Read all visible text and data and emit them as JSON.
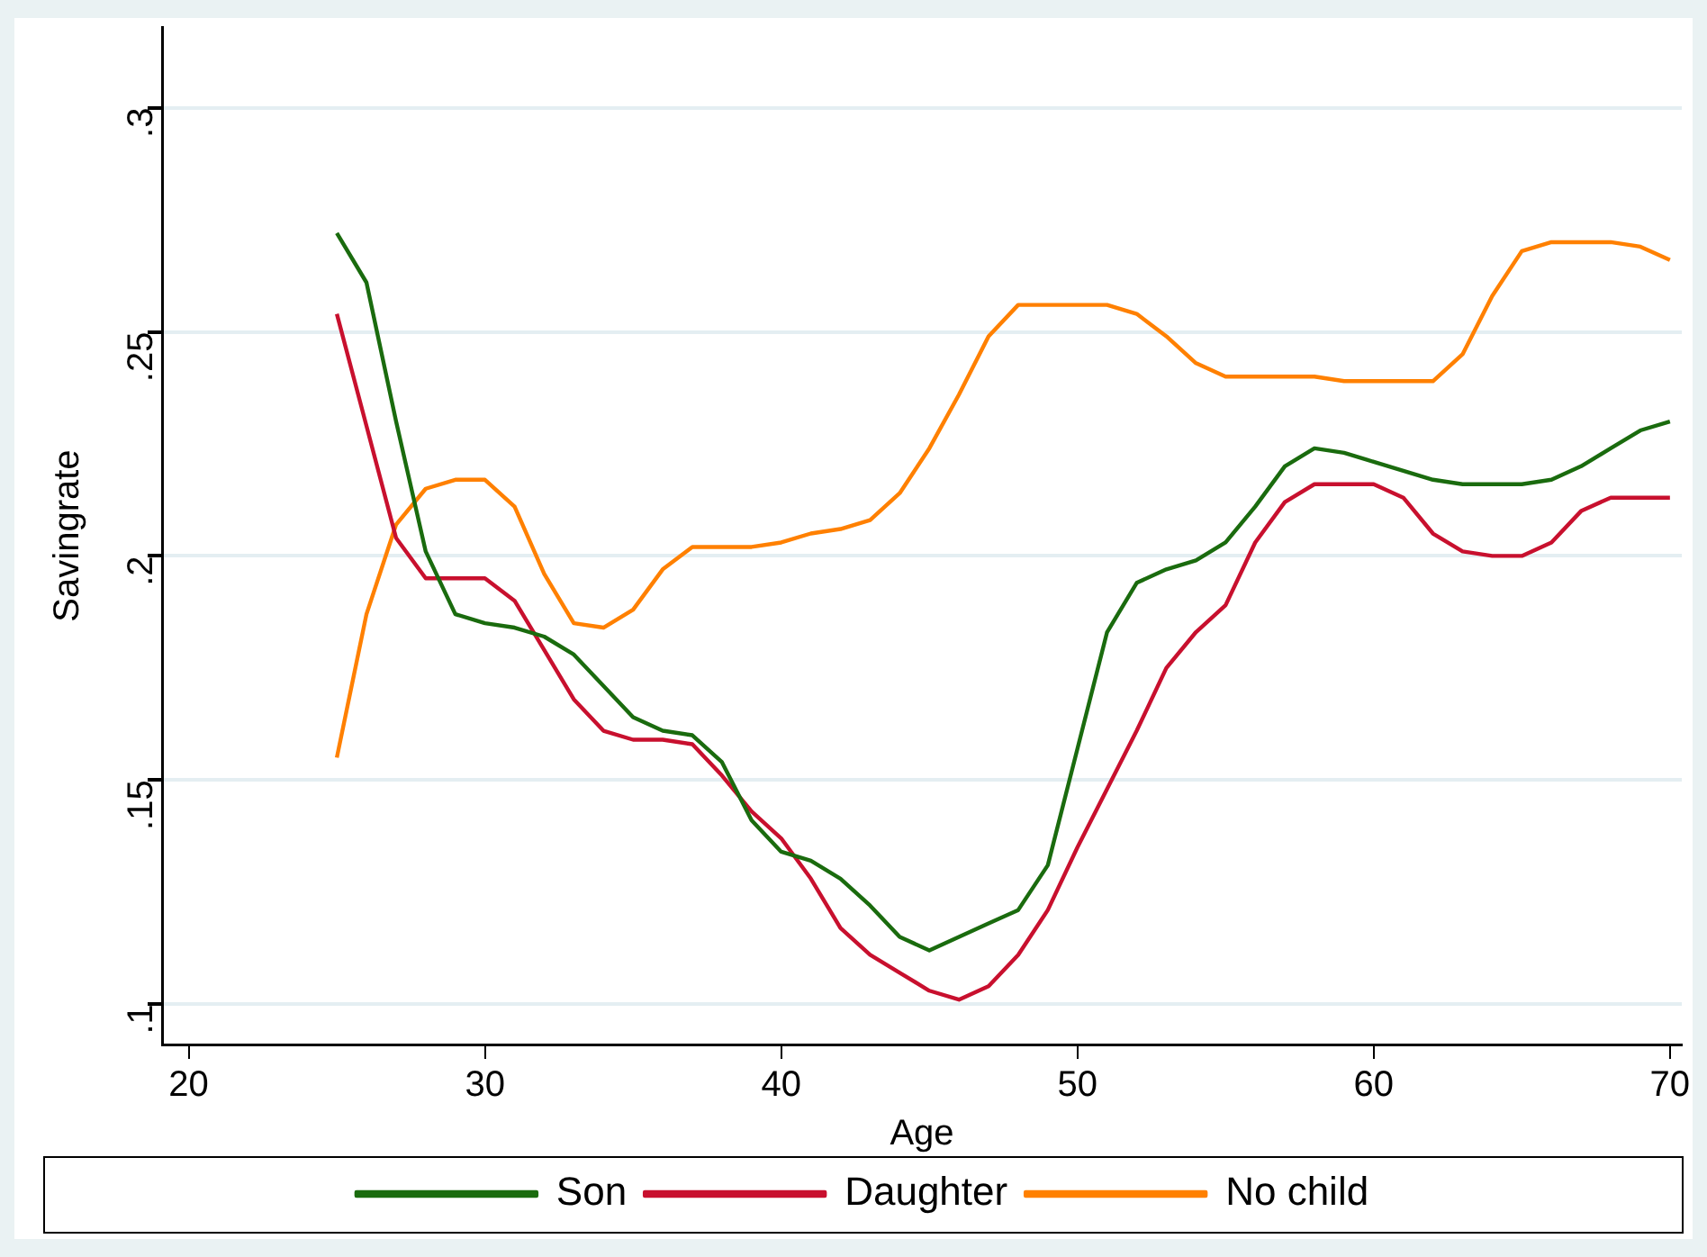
{
  "chart_data": {
    "type": "line",
    "xlabel": "Age",
    "ylabel": "Savingrate",
    "x": [
      25,
      26,
      27,
      28,
      29,
      30,
      31,
      32,
      33,
      34,
      35,
      36,
      37,
      38,
      39,
      40,
      41,
      42,
      43,
      44,
      45,
      46,
      47,
      48,
      49,
      50,
      51,
      52,
      53,
      54,
      55,
      56,
      57,
      58,
      59,
      60,
      61,
      62,
      63,
      64,
      65,
      66,
      67,
      68,
      69,
      70
    ],
    "series": [
      {
        "name": "Son",
        "color": "#1a6b0e",
        "values": [
          0.272,
          0.261,
          0.23,
          0.201,
          0.187,
          0.185,
          0.184,
          0.182,
          0.178,
          0.171,
          0.164,
          0.161,
          0.16,
          0.154,
          0.141,
          0.134,
          0.132,
          0.128,
          0.122,
          0.115,
          0.112,
          0.115,
          0.118,
          0.121,
          0.131,
          0.157,
          0.183,
          0.194,
          0.197,
          0.199,
          0.203,
          0.211,
          0.22,
          0.224,
          0.223,
          0.221,
          0.219,
          0.217,
          0.216,
          0.216,
          0.216,
          0.217,
          0.22,
          0.224,
          0.228,
          0.23
        ]
      },
      {
        "name": "Daughter",
        "color": "#c8102e",
        "values": [
          0.254,
          0.229,
          0.204,
          0.195,
          0.195,
          0.195,
          0.19,
          0.179,
          0.168,
          0.161,
          0.159,
          0.159,
          0.158,
          0.151,
          0.143,
          0.137,
          0.128,
          0.117,
          0.111,
          0.107,
          0.103,
          0.101,
          0.104,
          0.111,
          0.121,
          0.135,
          0.148,
          0.161,
          0.175,
          0.183,
          0.189,
          0.203,
          0.212,
          0.216,
          0.216,
          0.216,
          0.213,
          0.205,
          0.201,
          0.2,
          0.2,
          0.203,
          0.21,
          0.213,
          0.213,
          0.213
        ]
      },
      {
        "name": "No child",
        "color": "#ff8000",
        "values": [
          0.155,
          0.187,
          0.207,
          0.215,
          0.217,
          0.217,
          0.211,
          0.196,
          0.185,
          0.184,
          0.188,
          0.197,
          0.202,
          0.202,
          0.202,
          0.203,
          0.205,
          0.206,
          0.208,
          0.214,
          0.224,
          0.236,
          0.249,
          0.256,
          0.256,
          0.256,
          0.256,
          0.254,
          0.249,
          0.243,
          0.24,
          0.24,
          0.24,
          0.24,
          0.239,
          0.239,
          0.239,
          0.239,
          0.245,
          0.258,
          0.268,
          0.27,
          0.27,
          0.27,
          0.269,
          0.266
        ]
      }
    ],
    "xlim": [
      19.1,
      70.4
    ],
    "xticks": [
      20,
      30,
      40,
      50,
      60,
      70
    ],
    "ylim": [
      0.091,
      0.318
    ],
    "yticks": [
      {
        "value": 0.1,
        "label": ".1"
      },
      {
        "value": 0.15,
        "label": ".15"
      },
      {
        "value": 0.2,
        "label": ".2"
      },
      {
        "value": 0.25,
        "label": ".25"
      },
      {
        "value": 0.3,
        "label": ".3"
      }
    ],
    "grid": "y",
    "legend": "bottom",
    "marker": "none",
    "line_style": "solid"
  }
}
